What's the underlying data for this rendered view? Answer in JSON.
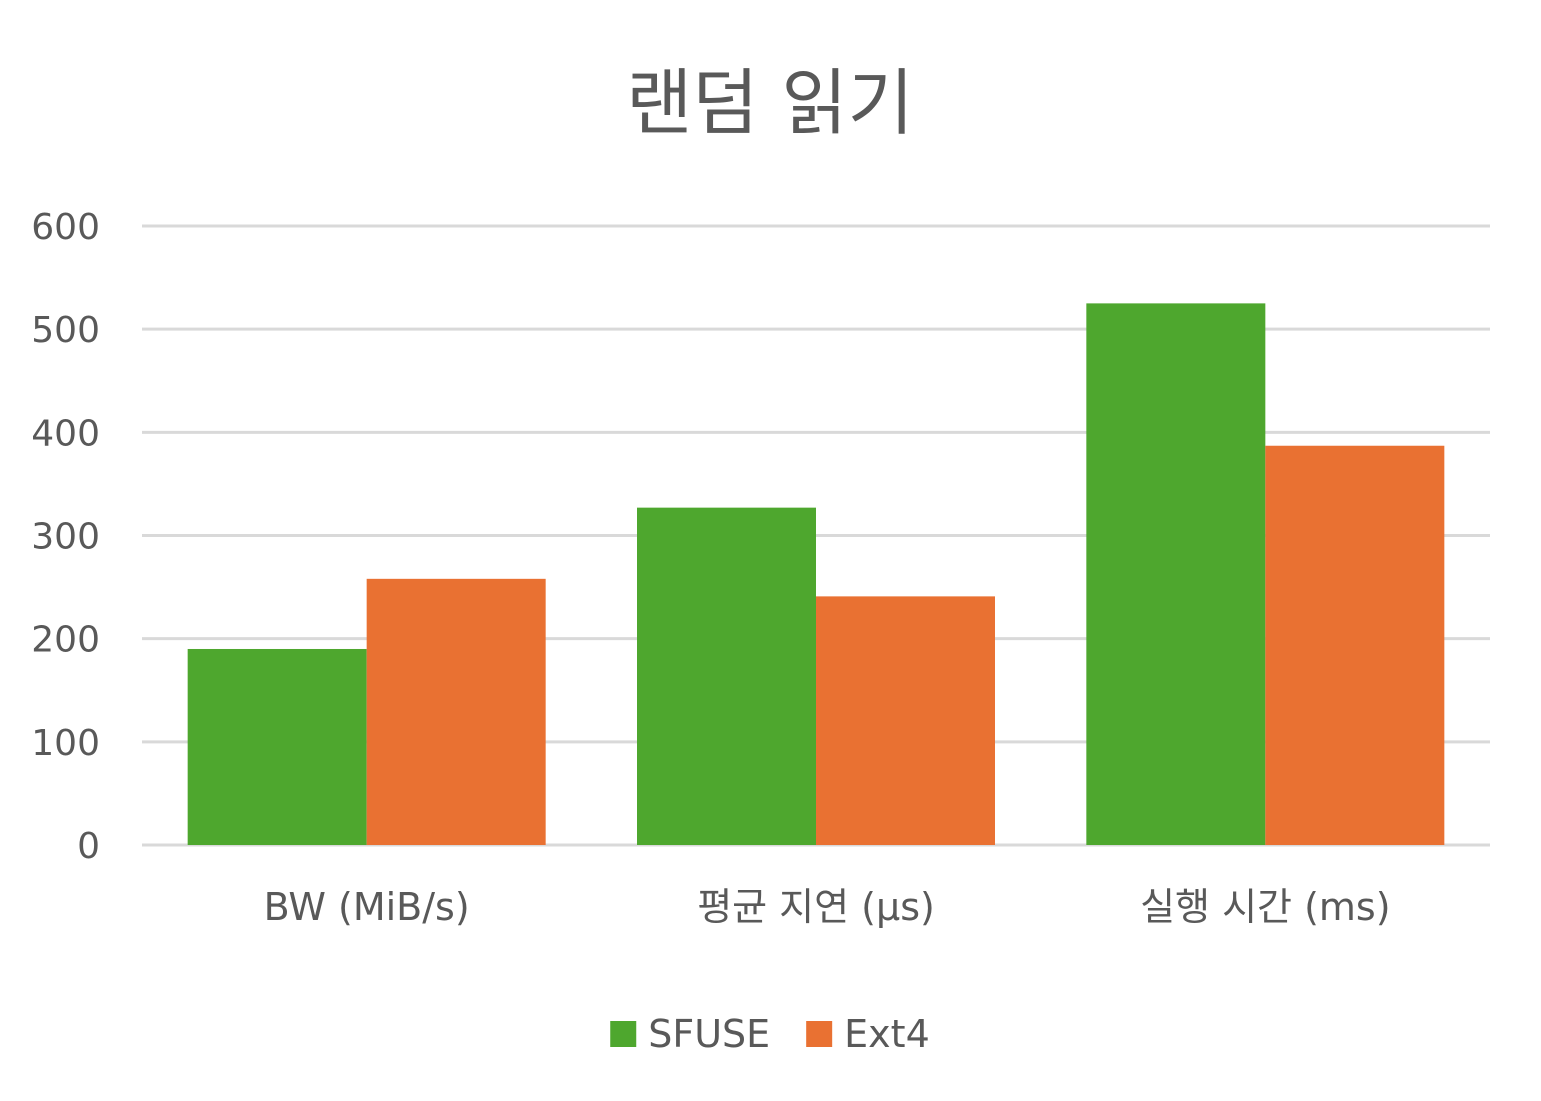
{
  "chart_data": {
    "type": "bar",
    "title": "랜덤 읽기",
    "xlabel": "",
    "ylabel": "",
    "categories": [
      "BW (MiB/s)",
      "평균 지연 (µs)",
      "실행 시간 (ms)"
    ],
    "series": [
      {
        "name": "SFUSE",
        "color": "#4ea72e",
        "values": [
          190,
          327,
          525
        ]
      },
      {
        "name": "Ext4",
        "color": "#e97132",
        "values": [
          258,
          241,
          387
        ]
      }
    ],
    "ylim": [
      0,
      600
    ],
    "yticks": [
      0,
      100,
      200,
      300,
      400,
      500,
      600
    ],
    "grid": true,
    "legend_position": "bottom"
  }
}
